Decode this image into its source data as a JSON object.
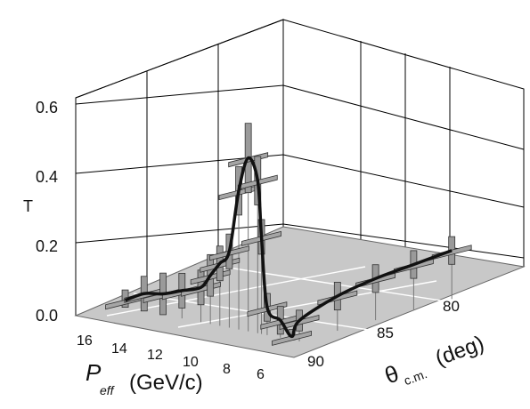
{
  "chart_data": {
    "type": "3d-scatter-with-errorbars",
    "z_axis": {
      "label": "T",
      "ticks": [
        "0.0",
        "0.2",
        "0.4",
        "0.6"
      ],
      "range": [
        0,
        0.65
      ]
    },
    "x_axis": {
      "label_main": "P",
      "label_sub": "eff",
      "label_unit": "(GeV/c)",
      "ticks": [
        "16",
        "14",
        "12",
        "10",
        "8",
        "6"
      ],
      "range": [
        5,
        17
      ]
    },
    "y_axis": {
      "label_main": "θ",
      "label_sub": "c.m.",
      "label_unit": "(deg)",
      "ticks": [
        "90",
        "85",
        "80"
      ],
      "range": [
        78,
        92
      ]
    },
    "grid": true,
    "points": [
      {
        "p": 16.0,
        "theta": 90,
        "t": 0.02,
        "dt": 0.03
      },
      {
        "p": 15.0,
        "theta": 90,
        "t": 0.05,
        "dt": 0.05
      },
      {
        "p": 14.0,
        "theta": 90,
        "t": 0.06,
        "dt": 0.06
      },
      {
        "p": 13.0,
        "theta": 90,
        "t": 0.08,
        "dt": 0.05
      },
      {
        "p": 12.0,
        "theta": 90,
        "t": 0.1,
        "dt": 0.05
      },
      {
        "p": 11.5,
        "theta": 90,
        "t": 0.14,
        "dt": 0.06
      },
      {
        "p": 11.0,
        "theta": 90,
        "t": 0.18,
        "dt": 0.05
      },
      {
        "p": 10.5,
        "theta": 90,
        "t": 0.22,
        "dt": 0.05
      },
      {
        "p": 10.0,
        "theta": 90,
        "t": 0.4,
        "dt": 0.07
      },
      {
        "p": 9.5,
        "theta": 90,
        "t": 0.5,
        "dt": 0.1
      },
      {
        "p": 9.0,
        "theta": 90,
        "t": 0.44,
        "dt": 0.07
      },
      {
        "p": 8.8,
        "theta": 90,
        "t": 0.28,
        "dt": 0.05
      },
      {
        "p": 8.5,
        "theta": 90,
        "t": 0.08,
        "dt": 0.04
      },
      {
        "p": 7.8,
        "theta": 90,
        "t": 0.05,
        "dt": 0.04
      },
      {
        "p": 7.2,
        "theta": 90,
        "t": 0.01,
        "dt": 0.02
      },
      {
        "p": 6.8,
        "theta": 90,
        "t": 0.06,
        "dt": 0.03
      },
      {
        "p": 6.4,
        "theta": 88,
        "t": 0.1,
        "dt": 0.04
      },
      {
        "p": 6.0,
        "theta": 86,
        "t": 0.12,
        "dt": 0.04
      },
      {
        "p": 5.6,
        "theta": 84,
        "t": 0.13,
        "dt": 0.04
      },
      {
        "p": 5.2,
        "theta": 82,
        "t": 0.14,
        "dt": 0.04
      }
    ]
  }
}
